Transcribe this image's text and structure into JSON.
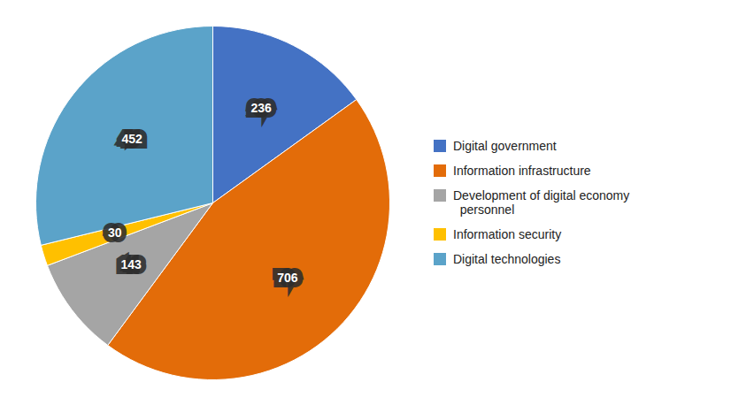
{
  "chart_data": {
    "type": "pie",
    "categories": [
      "Digital government",
      "Information infrastructure",
      "Development of digital economy\n  personnel",
      "Information security",
      "Digital technologies"
    ],
    "values": [
      236,
      706,
      143,
      30,
      452
    ],
    "colors": [
      "#4472C4",
      "#E36C09",
      "#A5A5A5",
      "#FFC000",
      "#5BA3C9"
    ],
    "data_labels": true,
    "legend": "right"
  }
}
